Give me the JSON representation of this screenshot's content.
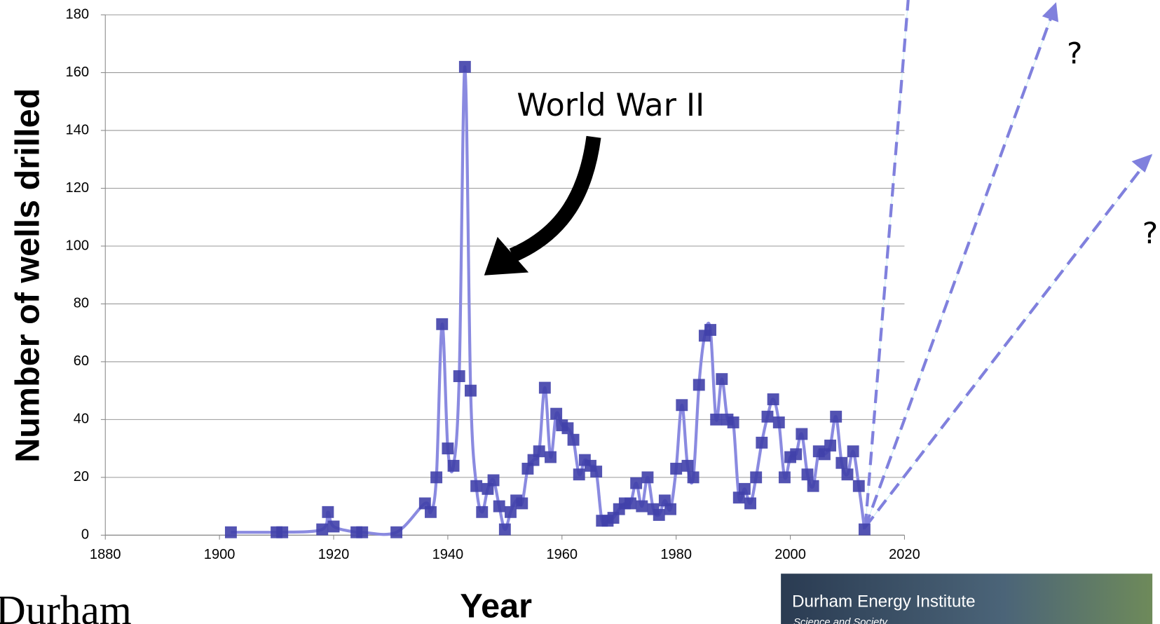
{
  "chart_data": {
    "type": "line",
    "y_label": "Number of wells drilled",
    "x_label": "Year",
    "annotation": "World War II",
    "projection_labels": [
      "?",
      "?"
    ],
    "logos": {
      "university": "Durham",
      "institute": "Durham Energy Institute",
      "institute_tagline": "Science and Society"
    },
    "xlim": [
      1880,
      2020
    ],
    "xticks": [
      1880,
      1900,
      1920,
      1940,
      1960,
      1980,
      2000,
      2020
    ],
    "ylim": [
      0,
      180
    ],
    "yticks": [
      0,
      20,
      40,
      60,
      80,
      100,
      120,
      140,
      160,
      180
    ],
    "grid": true,
    "line_color": "#8a8ae0",
    "marker_color": "#4040aa",
    "x": [
      1902,
      1910,
      1911,
      1918,
      1919,
      1920,
      1924,
      1925,
      1931,
      1936,
      1937,
      1938,
      1939,
      1940,
      1941,
      1942,
      1943,
      1944,
      1945,
      1946,
      1947,
      1948,
      1949,
      1950,
      1951,
      1952,
      1953,
      1954,
      1955,
      1956,
      1957,
      1958,
      1959,
      1960,
      1961,
      1962,
      1963,
      1964,
      1965,
      1966,
      1967,
      1968,
      1969,
      1970,
      1971,
      1972,
      1973,
      1974,
      1975,
      1976,
      1977,
      1978,
      1979,
      1980,
      1981,
      1982,
      1983,
      1984,
      1985,
      1986,
      1987,
      1988,
      1989,
      1990,
      1991,
      1992,
      1993,
      1994,
      1995,
      1996,
      1997,
      1998,
      1999,
      2000,
      2001,
      2002,
      2003,
      2004,
      2005,
      2006,
      2007,
      2008,
      2009,
      2010,
      2011,
      2012,
      2013
    ],
    "values": [
      1,
      1,
      1,
      2,
      8,
      3,
      1,
      1,
      1,
      11,
      8,
      20,
      73,
      30,
      24,
      55,
      162,
      50,
      17,
      8,
      16,
      19,
      10,
      2,
      8,
      12,
      11,
      23,
      26,
      29,
      51,
      27,
      42,
      38,
      37,
      33,
      21,
      26,
      24,
      22,
      5,
      5,
      6,
      9,
      11,
      11,
      18,
      10,
      20,
      9,
      7,
      12,
      9,
      23,
      45,
      24,
      20,
      52,
      69,
      71,
      40,
      54,
      40,
      39,
      13,
      16,
      11,
      20,
      32,
      41,
      47,
      39,
      20,
      27,
      28,
      35,
      21,
      17,
      29,
      28,
      31,
      41,
      25,
      21,
      29,
      17,
      2
    ]
  }
}
